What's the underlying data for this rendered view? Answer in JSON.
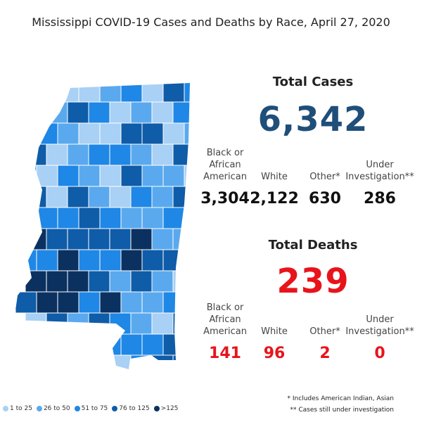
{
  "title": "Mississippi COVID-19 Cases and Deaths by Race, April 27, 2020",
  "cases": {
    "heading": "Total Cases",
    "total": "6,342",
    "breakdown": [
      {
        "label": "Black or African American",
        "value": "3,304"
      },
      {
        "label": "White",
        "value": "2,122"
      },
      {
        "label": "Other*",
        "value": "630"
      },
      {
        "label": "Under Investigation**",
        "value": "286"
      }
    ]
  },
  "deaths": {
    "heading": "Total Deaths",
    "total": "239",
    "breakdown": [
      {
        "label": "Black or African American",
        "value": "141"
      },
      {
        "label": "White",
        "value": "96"
      },
      {
        "label": "Other*",
        "value": "2"
      },
      {
        "label": "Under Investigation**",
        "value": "0"
      }
    ]
  },
  "legend": [
    {
      "label": "1 to 25",
      "color": "#a9d0f5"
    },
    {
      "label": "26 to 50",
      "color": "#5aa9ee"
    },
    {
      "label": "51 to 75",
      "color": "#1f87e6"
    },
    {
      "label": "76 to 125",
      "color": "#0f5ca8"
    },
    {
      "label": ">125",
      "color": "#0b3160"
    }
  ],
  "footnotes": [
    "* Includes American Indian, Asian",
    "** Cases still under investigation"
  ]
}
